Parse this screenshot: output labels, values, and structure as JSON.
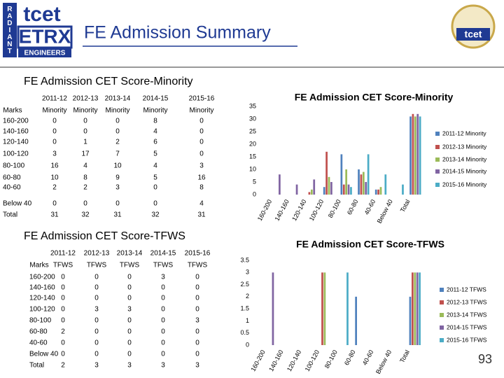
{
  "header": {
    "title": "FE Admission Summary",
    "logo_left": {
      "side": "RADIANT",
      "top": "tcet",
      "main": "ETRX",
      "bottom": "ENGINEERS"
    },
    "logo_right": "tcet"
  },
  "slide_number": "93",
  "tables": [
    {
      "title": "FE Admission CET Score-Minority",
      "header_top": [
        "2011-12",
        "2012-13",
        "2013-14",
        "2014-15",
        "2015-16"
      ],
      "header_bottom": [
        "Marks",
        "Minority",
        "Minority",
        "Minority",
        "Minority",
        "Minority"
      ],
      "rows": [
        [
          "160-200",
          0,
          0,
          0,
          8,
          0
        ],
        [
          "140-160",
          0,
          0,
          0,
          4,
          0
        ],
        [
          "120-140",
          0,
          1,
          2,
          6,
          0
        ],
        [
          "100-120",
          3,
          17,
          7,
          5,
          0
        ],
        [
          "80-100",
          16,
          4,
          10,
          4,
          3
        ],
        [
          "60-80",
          10,
          8,
          9,
          5,
          16
        ],
        [
          "40-60",
          2,
          2,
          3,
          0,
          8
        ],
        [
          "Below 40",
          0,
          0,
          0,
          0,
          4
        ],
        [
          "Total",
          31,
          32,
          31,
          32,
          31
        ]
      ]
    },
    {
      "title": "FE Admission CET Score-TFWS",
      "header_top": [
        "2011-12",
        "2012-13",
        "2013-14",
        "2014-15",
        "2015-16"
      ],
      "header_bottom": [
        "Marks",
        "TFWS",
        "TFWS",
        "TFWS",
        "TFWS",
        "TFWS"
      ],
      "rows": [
        [
          "160-200",
          0,
          0,
          0,
          3,
          0
        ],
        [
          "140-160",
          0,
          0,
          0,
          0,
          0
        ],
        [
          "120-140",
          0,
          0,
          0,
          0,
          0
        ],
        [
          "100-120",
          0,
          3,
          3,
          0,
          0
        ],
        [
          "80-100",
          0,
          0,
          0,
          0,
          3
        ],
        [
          "60-80",
          2,
          0,
          0,
          0,
          0
        ],
        [
          "40-60",
          0,
          0,
          0,
          0,
          0
        ],
        [
          "Below 40",
          0,
          0,
          0,
          0,
          0
        ],
        [
          "Total",
          2,
          3,
          3,
          3,
          3
        ]
      ]
    }
  ],
  "chart_data": [
    {
      "type": "bar",
      "title": "FE Admission CET Score-Minority",
      "categories": [
        "160-200",
        "140-160",
        "120-140",
        "100-120",
        "80-100",
        "60-80",
        "40-60",
        "Below 40",
        "Total"
      ],
      "series": [
        {
          "name": "2011-12 Minority",
          "color": "#4f81bd",
          "values": [
            0,
            0,
            0,
            3,
            16,
            10,
            2,
            0,
            31
          ]
        },
        {
          "name": "2012-13 Minority",
          "color": "#c0504d",
          "values": [
            0,
            0,
            1,
            17,
            4,
            8,
            2,
            0,
            32
          ]
        },
        {
          "name": "2013-14 Minority",
          "color": "#9bbb59",
          "values": [
            0,
            0,
            2,
            7,
            10,
            9,
            3,
            0,
            31
          ]
        },
        {
          "name": "2014-15 Minority",
          "color": "#8064a2",
          "values": [
            8,
            4,
            6,
            5,
            4,
            5,
            0,
            0,
            32
          ]
        },
        {
          "name": "2015-16 Minority",
          "color": "#4bacc6",
          "values": [
            0,
            0,
            0,
            0,
            3,
            16,
            8,
            4,
            31
          ]
        }
      ],
      "ylim": [
        0,
        35
      ],
      "yticks": [
        0,
        5,
        10,
        15,
        20,
        25,
        30,
        35
      ],
      "legend": "right"
    },
    {
      "type": "bar",
      "title": "FE Admission CET Score-TFWS",
      "categories": [
        "160-200",
        "140-160",
        "120-140",
        "100-120",
        "80-100",
        "60-80",
        "40-60",
        "Below 40",
        "Total"
      ],
      "series": [
        {
          "name": "2011-12 TFWS",
          "color": "#4f81bd",
          "values": [
            0,
            0,
            0,
            0,
            0,
            2,
            0,
            0,
            2
          ]
        },
        {
          "name": "2012-13 TFWS",
          "color": "#c0504d",
          "values": [
            0,
            0,
            0,
            3,
            0,
            0,
            0,
            0,
            3
          ]
        },
        {
          "name": "2013-14 TFWS",
          "color": "#9bbb59",
          "values": [
            0,
            0,
            0,
            3,
            0,
            0,
            0,
            0,
            3
          ]
        },
        {
          "name": "2014-15 TFWS",
          "color": "#8064a2",
          "values": [
            3,
            0,
            0,
            0,
            0,
            0,
            0,
            0,
            3
          ]
        },
        {
          "name": "2015-16 TFWS",
          "color": "#4bacc6",
          "values": [
            0,
            0,
            0,
            0,
            3,
            0,
            0,
            0,
            3
          ]
        }
      ],
      "ylim": [
        0,
        3.5
      ],
      "yticks": [
        0,
        0.5,
        1,
        1.5,
        2,
        2.5,
        3,
        3.5
      ],
      "legend": "right"
    }
  ]
}
